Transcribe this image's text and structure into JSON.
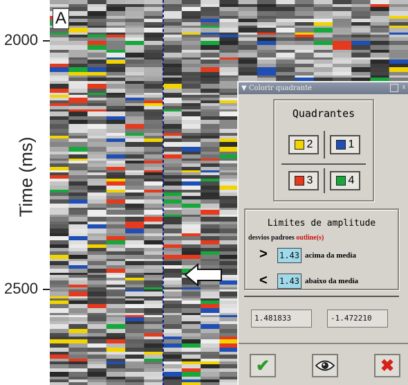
{
  "figure": {
    "panel_label": "A",
    "y_axis_title": "Time (ms)",
    "y_ticks": [
      "2000",
      "2500"
    ]
  },
  "dialog": {
    "title": "Colorir quadrante",
    "close_glyph": "x",
    "quadrants": {
      "title": "Quadrantes",
      "buttons": [
        {
          "number": "2",
          "color": "#f2d500"
        },
        {
          "number": "1",
          "color": "#1f4fb4"
        },
        {
          "number": "3",
          "color": "#e63a1e"
        },
        {
          "number": "4",
          "color": "#17a83c"
        }
      ]
    },
    "limits": {
      "title": "Limites de amplitude",
      "caption_prefix": "desvios padroes",
      "caption_highlight": "outline(s)",
      "above": {
        "symbol": ">",
        "value": "1.43",
        "label": "acima da media"
      },
      "below": {
        "symbol": "<",
        "value": "1.43",
        "label": "abaixo da media"
      }
    },
    "readouts": {
      "max": "1.481833",
      "min": "-1.472210"
    },
    "actions": {
      "apply_glyph": "✔",
      "view_icon": "eye-icon",
      "cancel_glyph": "✖"
    }
  },
  "colors": {
    "yellow": "#f2d500",
    "blue": "#1f4fb4",
    "red": "#e63a1e",
    "green": "#17a83c"
  }
}
